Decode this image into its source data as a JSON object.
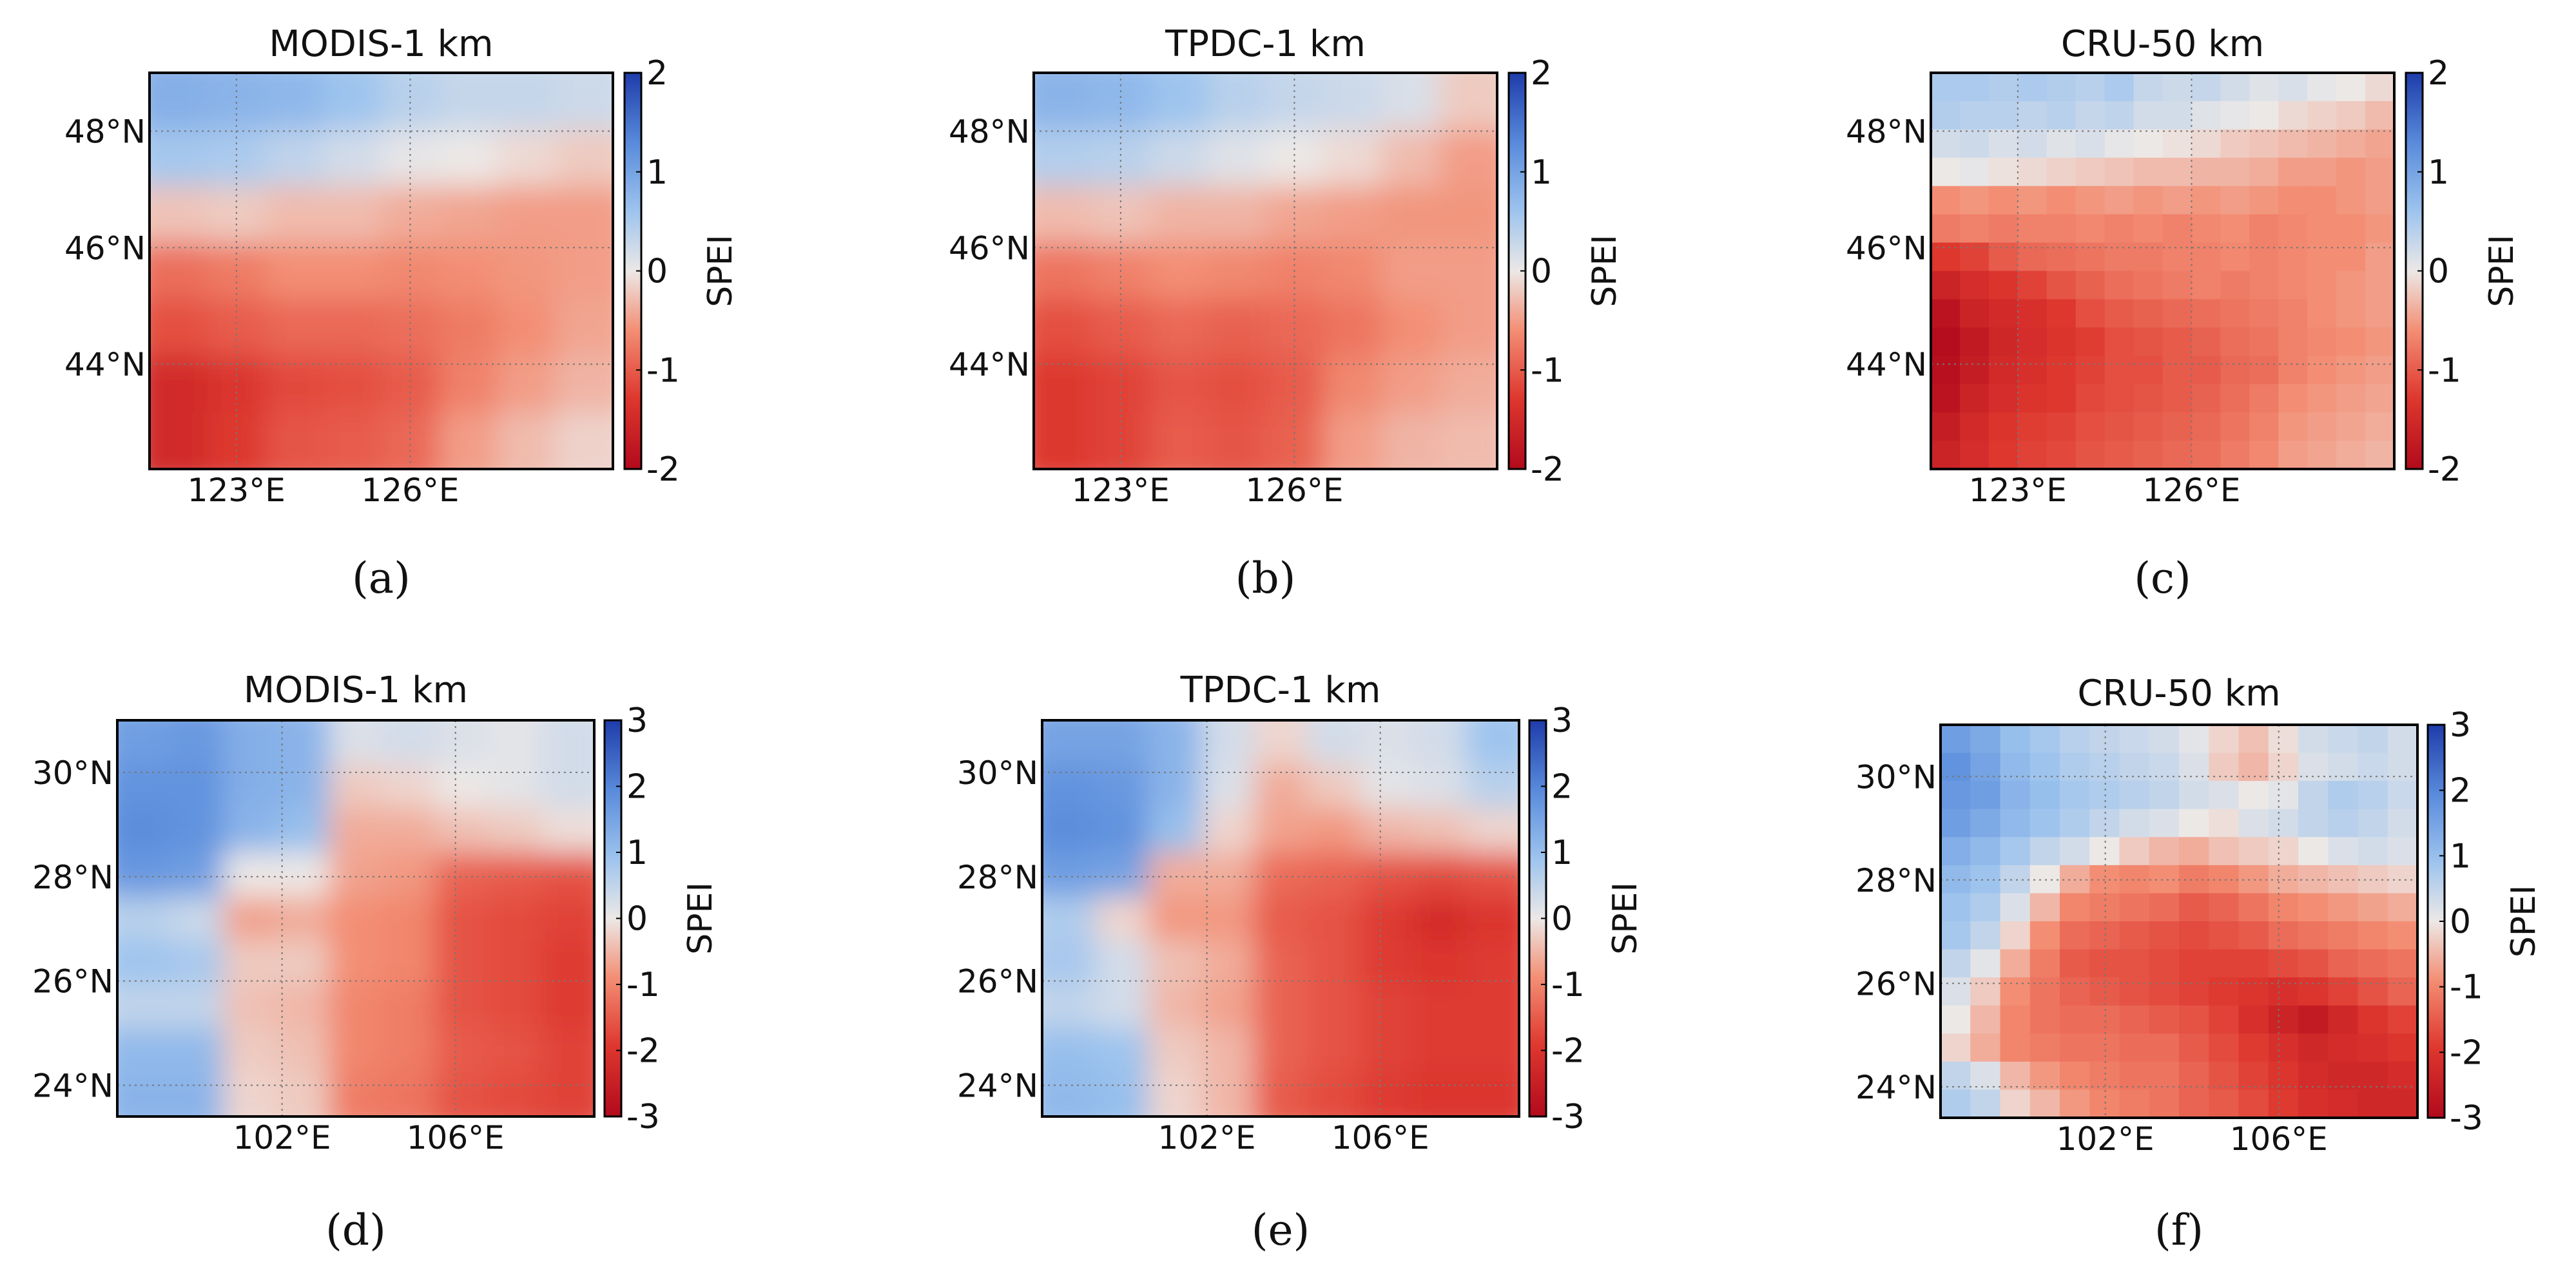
{
  "chart_data": [
    {
      "type": "heatmap",
      "panel_label": "(a)",
      "title": "MODIS-1 km",
      "xlabel": "",
      "ylabel": "",
      "x_ticks": [
        "123°E",
        "126°E"
      ],
      "x_tick_values": [
        123,
        126
      ],
      "xlim": [
        121.5,
        129.5
      ],
      "y_ticks": [
        "48°N",
        "46°N",
        "44°N"
      ],
      "y_tick_values": [
        48,
        46,
        44
      ],
      "ylim": [
        42.2,
        49.0
      ],
      "colorbar": {
        "label": "SPEI",
        "ticks": [
          "2",
          "1",
          "0",
          "-1",
          "-2"
        ],
        "tick_values": [
          2,
          1,
          0,
          -1,
          -2
        ],
        "range": [
          -2,
          2
        ]
      },
      "grid": "dotted",
      "cols": 8,
      "rows": 7,
      "smooth": true,
      "values": [
        [
          0.85,
          0.8,
          0.75,
          0.6,
          0.4,
          0.3,
          0.3,
          0.25
        ],
        [
          0.55,
          0.5,
          0.35,
          0.2,
          0.05,
          0.0,
          -0.1,
          -0.2
        ],
        [
          -0.25,
          -0.2,
          -0.3,
          -0.3,
          -0.4,
          -0.45,
          -0.5,
          -0.5
        ],
        [
          -0.85,
          -0.75,
          -0.6,
          -0.6,
          -0.65,
          -0.6,
          -0.55,
          -0.5
        ],
        [
          -1.1,
          -1.0,
          -0.9,
          -0.9,
          -0.85,
          -0.75,
          -0.6,
          -0.45
        ],
        [
          -1.5,
          -1.35,
          -1.15,
          -1.1,
          -1.0,
          -0.7,
          -0.5,
          -0.35
        ],
        [
          -1.5,
          -1.3,
          -1.05,
          -1.0,
          -0.9,
          -0.5,
          -0.3,
          -0.15
        ]
      ]
    },
    {
      "type": "heatmap",
      "panel_label": "(b)",
      "title": "TPDC-1 km",
      "xlabel": "",
      "ylabel": "",
      "x_ticks": [
        "123°E",
        "126°E"
      ],
      "x_tick_values": [
        123,
        126
      ],
      "xlim": [
        121.5,
        129.5
      ],
      "y_ticks": [
        "48°N",
        "46°N",
        "44°N"
      ],
      "y_tick_values": [
        48,
        46,
        44
      ],
      "ylim": [
        42.2,
        49.0
      ],
      "colorbar": {
        "label": "SPEI",
        "ticks": [
          "2",
          "1",
          "0",
          "-1",
          "-2"
        ],
        "tick_values": [
          2,
          1,
          0,
          -1,
          -2
        ],
        "range": [
          -2,
          2
        ]
      },
      "grid": "dotted",
      "cols": 8,
      "rows": 7,
      "smooth": true,
      "values": [
        [
          0.8,
          0.75,
          0.6,
          0.4,
          0.3,
          0.25,
          0.15,
          -0.2
        ],
        [
          0.45,
          0.4,
          0.25,
          0.1,
          0.0,
          -0.1,
          -0.3,
          -0.5
        ],
        [
          -0.3,
          -0.25,
          -0.35,
          -0.35,
          -0.45,
          -0.5,
          -0.55,
          -0.55
        ],
        [
          -0.8,
          -0.7,
          -0.6,
          -0.65,
          -0.7,
          -0.65,
          -0.5,
          -0.5
        ],
        [
          -1.1,
          -1.0,
          -0.9,
          -0.95,
          -0.9,
          -0.8,
          -0.6,
          -0.5
        ],
        [
          -1.3,
          -1.2,
          -1.05,
          -1.1,
          -1.0,
          -0.65,
          -0.5,
          -0.4
        ],
        [
          -1.3,
          -1.2,
          -1.0,
          -1.05,
          -0.95,
          -0.5,
          -0.35,
          -0.3
        ]
      ]
    },
    {
      "type": "heatmap",
      "panel_label": "(c)",
      "title": "CRU-50 km",
      "xlabel": "",
      "ylabel": "",
      "x_ticks": [
        "123°E",
        "126°E"
      ],
      "x_tick_values": [
        123,
        126
      ],
      "xlim": [
        121.5,
        129.5
      ],
      "y_ticks": [
        "48°N",
        "46°N",
        "44°N"
      ],
      "y_tick_values": [
        48,
        46,
        44
      ],
      "ylim": [
        42.2,
        49.0
      ],
      "colorbar": {
        "label": "SPEI",
        "ticks": [
          "2",
          "1",
          "0",
          "-1",
          "-2"
        ],
        "tick_values": [
          2,
          1,
          0,
          -1,
          -2
        ],
        "range": [
          -2,
          2
        ]
      },
      "grid": "dotted",
      "cols": 16,
      "rows": 14,
      "smooth": false,
      "values": [
        [
          0.5,
          0.5,
          0.45,
          0.5,
          0.45,
          0.4,
          0.5,
          0.3,
          0.25,
          0.3,
          0.2,
          0.1,
          0.15,
          0.05,
          0.0,
          -0.1
        ],
        [
          0.45,
          0.4,
          0.4,
          0.35,
          0.4,
          0.3,
          0.35,
          0.2,
          0.2,
          0.1,
          0.05,
          0.0,
          -0.1,
          -0.15,
          -0.2,
          -0.3
        ],
        [
          0.2,
          0.25,
          0.15,
          0.2,
          0.1,
          0.15,
          0.05,
          0.0,
          -0.05,
          -0.1,
          -0.2,
          -0.25,
          -0.3,
          -0.35,
          -0.4,
          -0.45
        ],
        [
          0.0,
          0.05,
          -0.05,
          -0.1,
          -0.15,
          -0.2,
          -0.25,
          -0.3,
          -0.3,
          -0.35,
          -0.35,
          -0.4,
          -0.5,
          -0.5,
          -0.55,
          -0.5
        ],
        [
          -0.6,
          -0.55,
          -0.6,
          -0.55,
          -0.6,
          -0.55,
          -0.5,
          -0.55,
          -0.5,
          -0.55,
          -0.5,
          -0.55,
          -0.6,
          -0.6,
          -0.55,
          -0.5
        ],
        [
          -0.75,
          -0.7,
          -0.75,
          -0.7,
          -0.7,
          -0.65,
          -0.7,
          -0.65,
          -0.7,
          -0.65,
          -0.6,
          -0.7,
          -0.65,
          -0.6,
          -0.6,
          -0.55
        ],
        [
          -1.3,
          -1.2,
          -1.0,
          -0.9,
          -0.85,
          -0.8,
          -0.75,
          -0.75,
          -0.7,
          -0.7,
          -0.65,
          -0.7,
          -0.65,
          -0.6,
          -0.6,
          -0.5
        ],
        [
          -1.6,
          -1.45,
          -1.35,
          -1.2,
          -1.05,
          -0.95,
          -0.85,
          -0.8,
          -0.75,
          -0.7,
          -0.75,
          -0.7,
          -0.65,
          -0.6,
          -0.55,
          -0.5
        ],
        [
          -1.85,
          -1.6,
          -1.5,
          -1.4,
          -1.3,
          -1.1,
          -1.0,
          -0.95,
          -0.9,
          -0.85,
          -0.8,
          -0.75,
          -0.7,
          -0.6,
          -0.55,
          -0.5
        ],
        [
          -1.95,
          -1.75,
          -1.55,
          -1.45,
          -1.35,
          -1.25,
          -1.1,
          -1.05,
          -1.0,
          -0.95,
          -0.85,
          -0.8,
          -0.7,
          -0.65,
          -0.6,
          -0.55
        ],
        [
          -1.9,
          -1.7,
          -1.5,
          -1.4,
          -1.3,
          -1.2,
          -1.1,
          -1.1,
          -1.0,
          -1.0,
          -0.9,
          -0.85,
          -0.7,
          -0.6,
          -0.55,
          -0.5
        ],
        [
          -1.85,
          -1.6,
          -1.45,
          -1.35,
          -1.3,
          -1.15,
          -1.1,
          -1.05,
          -1.0,
          -0.95,
          -0.85,
          -0.75,
          -0.6,
          -0.55,
          -0.5,
          -0.45
        ],
        [
          -1.7,
          -1.5,
          -1.35,
          -1.25,
          -1.2,
          -1.1,
          -1.05,
          -1.0,
          -0.95,
          -0.9,
          -0.8,
          -0.7,
          -0.55,
          -0.5,
          -0.45,
          -0.4
        ],
        [
          -1.6,
          -1.45,
          -1.3,
          -1.2,
          -1.15,
          -1.05,
          -1.0,
          -0.95,
          -0.9,
          -0.85,
          -0.75,
          -0.65,
          -0.5,
          -0.45,
          -0.4,
          -0.35
        ]
      ]
    },
    {
      "type": "heatmap",
      "panel_label": "(d)",
      "title": "MODIS-1 km",
      "xlabel": "",
      "ylabel": "",
      "x_ticks": [
        "102°E",
        "106°E"
      ],
      "x_tick_values": [
        102,
        106
      ],
      "xlim": [
        98.2,
        109.2
      ],
      "y_ticks": [
        "30°N",
        "28°N",
        "26°N",
        "24°N"
      ],
      "y_tick_values": [
        30,
        28,
        26,
        24
      ],
      "ylim": [
        23.4,
        31.0
      ],
      "colorbar": {
        "label": "SPEI",
        "ticks": [
          "3",
          "2",
          "1",
          "0",
          "-1",
          "-2",
          "-3"
        ],
        "tick_values": [
          3,
          2,
          1,
          0,
          -1,
          -2,
          -3
        ],
        "range": [
          -3,
          3
        ]
      },
      "grid": "dotted",
      "cols": 9,
      "rows": 9,
      "smooth": true,
      "values": [
        [
          1.6,
          1.7,
          1.3,
          1.2,
          0.2,
          0.3,
          0.2,
          0.1,
          0.3
        ],
        [
          1.8,
          1.8,
          1.3,
          1.2,
          -0.3,
          -0.2,
          0.0,
          0.1,
          0.3
        ],
        [
          1.9,
          1.8,
          1.2,
          1.0,
          -0.6,
          -0.6,
          -0.4,
          -0.3,
          -0.1
        ],
        [
          1.7,
          1.6,
          0.0,
          0.0,
          -0.7,
          -0.8,
          -1.4,
          -1.5,
          -1.6
        ],
        [
          0.6,
          0.4,
          -0.7,
          -0.6,
          -0.9,
          -1.0,
          -1.6,
          -1.7,
          -1.8
        ],
        [
          0.9,
          0.8,
          -0.3,
          -0.3,
          -0.9,
          -1.0,
          -1.6,
          -1.7,
          -1.9
        ],
        [
          0.5,
          0.5,
          -0.4,
          -0.5,
          -1.0,
          -1.1,
          -1.6,
          -1.7,
          -1.9
        ],
        [
          1.1,
          1.1,
          -0.3,
          -0.4,
          -1.0,
          -1.1,
          -1.5,
          -1.6,
          -1.8
        ],
        [
          1.2,
          1.2,
          -0.2,
          -0.3,
          -1.1,
          -1.2,
          -1.6,
          -1.7,
          -1.8
        ]
      ]
    },
    {
      "type": "heatmap",
      "panel_label": "(e)",
      "title": "TPDC-1 km",
      "xlabel": "",
      "ylabel": "",
      "x_ticks": [
        "102°E",
        "106°E"
      ],
      "x_tick_values": [
        102,
        106
      ],
      "xlim": [
        98.2,
        109.2
      ],
      "y_ticks": [
        "30°N",
        "28°N",
        "26°N",
        "24°N"
      ],
      "y_tick_values": [
        30,
        28,
        26,
        24
      ],
      "ylim": [
        23.4,
        31.0
      ],
      "colorbar": {
        "label": "SPEI",
        "ticks": [
          "3",
          "2",
          "1",
          "0",
          "-1",
          "-2",
          "-3"
        ],
        "tick_values": [
          3,
          2,
          1,
          0,
          -1,
          -2,
          -3
        ],
        "range": [
          -3,
          3
        ]
      },
      "grid": "dotted",
      "cols": 9,
      "rows": 9,
      "smooth": true,
      "values": [
        [
          1.5,
          1.5,
          1.2,
          0.3,
          -0.2,
          0.3,
          0.2,
          0.3,
          0.9
        ],
        [
          1.8,
          1.7,
          1.2,
          0.2,
          -0.6,
          -0.3,
          0.1,
          0.2,
          0.6
        ],
        [
          1.9,
          1.8,
          1.0,
          -0.2,
          -0.7,
          -0.8,
          -0.5,
          -0.4,
          -0.2
        ],
        [
          1.6,
          1.5,
          -0.6,
          -0.6,
          -1.3,
          -1.4,
          -1.6,
          -1.7,
          -1.6
        ],
        [
          0.7,
          -0.2,
          -0.8,
          -0.8,
          -1.5,
          -1.6,
          -1.9,
          -2.2,
          -2.0
        ],
        [
          0.8,
          0.3,
          -0.4,
          -0.6,
          -1.4,
          -1.6,
          -1.9,
          -2.0,
          -1.9
        ],
        [
          0.5,
          0.3,
          -0.5,
          -0.7,
          -1.4,
          -1.6,
          -1.8,
          -1.9,
          -1.9
        ],
        [
          1.0,
          0.9,
          -0.3,
          -0.5,
          -1.4,
          -1.6,
          -1.8,
          -1.9,
          -1.9
        ],
        [
          1.1,
          1.0,
          -0.2,
          -0.5,
          -1.5,
          -1.7,
          -1.9,
          -2.0,
          -2.0
        ]
      ]
    },
    {
      "type": "heatmap",
      "panel_label": "(f)",
      "title": "CRU-50 km",
      "xlabel": "",
      "ylabel": "",
      "x_ticks": [
        "102°E",
        "106°E"
      ],
      "x_tick_values": [
        102,
        106
      ],
      "xlim": [
        98.2,
        109.2
      ],
      "y_ticks": [
        "30°N",
        "28°N",
        "26°N",
        "24°N"
      ],
      "y_tick_values": [
        30,
        28,
        26,
        24
      ],
      "ylim": [
        23.4,
        31.0
      ],
      "colorbar": {
        "label": "SPEI",
        "ticks": [
          "3",
          "2",
          "1",
          "0",
          "-1",
          "-2",
          "-3"
        ],
        "tick_values": [
          3,
          2,
          1,
          0,
          -1,
          -2,
          -3
        ],
        "range": [
          -3,
          3
        ]
      },
      "grid": "dotted",
      "cols": 16,
      "rows": 14,
      "smooth": false,
      "values": [
        [
          1.6,
          1.4,
          1.0,
          0.8,
          0.6,
          0.5,
          0.4,
          0.3,
          0.1,
          -0.2,
          -0.4,
          -0.1,
          0.3,
          0.4,
          0.5,
          0.3
        ],
        [
          1.8,
          1.5,
          1.1,
          0.9,
          0.7,
          0.6,
          0.5,
          0.4,
          0.2,
          -0.3,
          -0.5,
          -0.2,
          0.2,
          0.3,
          0.4,
          0.3
        ],
        [
          1.7,
          1.6,
          1.2,
          1.0,
          0.8,
          0.7,
          0.6,
          0.5,
          0.3,
          0.2,
          0.0,
          0.1,
          0.5,
          0.7,
          0.6,
          0.4
        ],
        [
          1.6,
          1.4,
          1.1,
          0.9,
          0.7,
          0.5,
          0.3,
          0.2,
          0.0,
          -0.1,
          0.2,
          0.3,
          0.5,
          0.6,
          0.5,
          0.3
        ],
        [
          1.3,
          1.1,
          0.8,
          0.5,
          0.3,
          0.0,
          -0.3,
          -0.5,
          -0.6,
          -0.4,
          -0.3,
          -0.2,
          0.0,
          0.2,
          0.3,
          0.2
        ],
        [
          1.1,
          0.9,
          0.5,
          0.0,
          -0.6,
          -0.9,
          -1.0,
          -0.9,
          -1.1,
          -1.0,
          -0.8,
          -0.6,
          -0.5,
          -0.4,
          -0.3,
          -0.2
        ],
        [
          0.9,
          0.7,
          0.2,
          -0.5,
          -1.0,
          -1.1,
          -1.2,
          -1.3,
          -1.5,
          -1.4,
          -1.2,
          -1.0,
          -0.9,
          -0.8,
          -0.7,
          -0.6
        ],
        [
          0.8,
          0.5,
          -0.2,
          -0.9,
          -1.3,
          -1.4,
          -1.5,
          -1.6,
          -1.7,
          -1.6,
          -1.5,
          -1.3,
          -1.2,
          -1.1,
          -1.0,
          -0.9
        ],
        [
          0.5,
          0.1,
          -0.6,
          -1.1,
          -1.5,
          -1.6,
          -1.6,
          -1.7,
          -1.8,
          -1.8,
          -1.8,
          -1.7,
          -1.6,
          -1.4,
          -1.3,
          -1.2
        ],
        [
          0.2,
          -0.3,
          -0.9,
          -1.2,
          -1.4,
          -1.5,
          -1.6,
          -1.7,
          -1.8,
          -1.9,
          -2.0,
          -2.1,
          -2.0,
          -1.8,
          -1.6,
          -1.4
        ],
        [
          0.0,
          -0.5,
          -1.0,
          -1.2,
          -1.3,
          -1.3,
          -1.4,
          -1.5,
          -1.6,
          -1.8,
          -2.1,
          -2.4,
          -2.6,
          -2.3,
          -2.0,
          -1.8
        ],
        [
          -0.2,
          -0.6,
          -1.0,
          -1.1,
          -1.2,
          -1.2,
          -1.3,
          -1.3,
          -1.5,
          -1.7,
          -1.9,
          -2.1,
          -2.3,
          -2.2,
          -2.1,
          -2.0
        ],
        [
          0.5,
          0.2,
          -0.5,
          -0.8,
          -1.0,
          -1.1,
          -1.2,
          -1.2,
          -1.4,
          -1.6,
          -1.8,
          -2.0,
          -2.2,
          -2.3,
          -2.3,
          -2.2
        ],
        [
          0.7,
          0.5,
          -0.2,
          -0.5,
          -0.8,
          -1.0,
          -1.1,
          -1.2,
          -1.4,
          -1.5,
          -1.7,
          -1.9,
          -2.1,
          -2.2,
          -2.3,
          -2.3
        ]
      ]
    }
  ]
}
